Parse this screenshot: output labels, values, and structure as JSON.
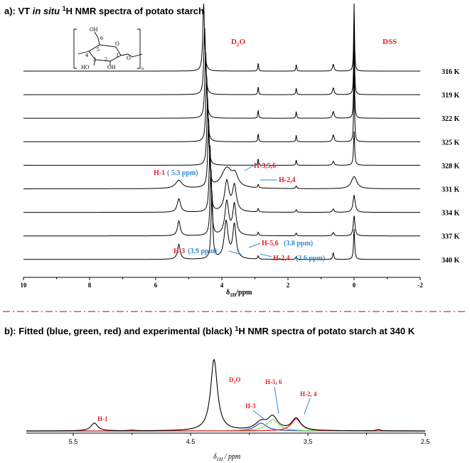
{
  "panel_a": {
    "title_prefix": "a): VT ",
    "title_italic": "in situ",
    "title_sup": "1",
    "title_suffix": "H NMR spectra of potato starch",
    "structure": {
      "oh_top": "OH",
      "num_6": "6",
      "num_5": "5",
      "num_4": "4",
      "num_1": "1",
      "num_3": "3",
      "num_2": "2",
      "ho_left": "HO",
      "oh_bottom": "OH",
      "o_ring": "O",
      "o_link": "O",
      "n_sub": "n"
    },
    "labels": {
      "d2o_main": "D",
      "d2o_sub": "2",
      "d2o_end": "O",
      "dss": "DSS",
      "h1": "H-1",
      "h1_ppm": "( 5.3 ppm)",
      "h356": "H-3,5,6",
      "h24": "H-2,4",
      "h56": "H-5,6",
      "h56_ppm": "(3.8 ppm)",
      "h3": "H-3",
      "h3_ppm": "(3.9 ppm)",
      "h24b": "H-2,4",
      "h24b_ppm": "(3.6 ppm)"
    },
    "xlabel_main": "δ",
    "xlabel_sub": "1H",
    "xlabel_end": "/ppm"
  },
  "panel_b": {
    "title_prefix": "b): Fitted (blue, green, red) and experimental (black) ",
    "title_sup": "1",
    "title_suffix": "H NMR spectra of potato starch at 340 K",
    "labels": {
      "h1": "H-1",
      "d2o": "D",
      "d2o_sub": "2",
      "d2o_end": "O",
      "h3": "H-3",
      "h56": "H-5, 6",
      "h24": "H-2, 4"
    },
    "xlabel_main": "δ",
    "xlabel_sub": "1H",
    "xlabel_end": " / ppm"
  },
  "chart_data": [
    {
      "type": "line",
      "title": "a): VT in situ 1H NMR spectra of potato starch",
      "xlabel": "δ1H/ppm",
      "ylabel": "",
      "x_reversed": true,
      "xlim": [
        10,
        -2
      ],
      "xticks": [
        "10",
        "8",
        "6",
        "4",
        "2",
        "0",
        "-2"
      ],
      "series": [
        {
          "name": "316 K",
          "peaks": [
            [
              4.55,
              1.0,
              0.03
            ],
            [
              2.9,
              0.12,
              0.015
            ],
            [
              1.75,
              0.1,
              0.015
            ],
            [
              0.63,
              0.1,
              0.03
            ],
            [
              0.0,
              1.0,
              0.015
            ]
          ]
        },
        {
          "name": "319 K",
          "peaks": [
            [
              4.52,
              1.0,
              0.03
            ],
            [
              2.9,
              0.12,
              0.015
            ],
            [
              1.75,
              0.1,
              0.015
            ],
            [
              0.63,
              0.1,
              0.03
            ],
            [
              0.0,
              1.0,
              0.015
            ]
          ]
        },
        {
          "name": "322 K",
          "peaks": [
            [
              4.49,
              1.0,
              0.03
            ],
            [
              2.9,
              0.12,
              0.015
            ],
            [
              1.75,
              0.1,
              0.015
            ],
            [
              0.63,
              0.1,
              0.03
            ],
            [
              0.0,
              1.0,
              0.015
            ]
          ]
        },
        {
          "name": "325 K",
          "peaks": [
            [
              4.46,
              1.0,
              0.03
            ],
            [
              2.9,
              0.12,
              0.015
            ],
            [
              1.75,
              0.1,
              0.015
            ],
            [
              0.63,
              0.1,
              0.03
            ],
            [
              0.0,
              1.0,
              0.015
            ]
          ]
        },
        {
          "name": "328 K",
          "peaks": [
            [
              4.43,
              1.0,
              0.03
            ],
            [
              2.9,
              0.1,
              0.015
            ],
            [
              1.75,
              0.08,
              0.015
            ],
            [
              0.63,
              0.06,
              0.03
            ],
            [
              0.0,
              0.5,
              0.02
            ]
          ]
        },
        {
          "name": "331 K",
          "peaks": [
            [
              4.4,
              1.0,
              0.03
            ],
            [
              5.3,
              0.12,
              0.12
            ],
            [
              3.85,
              0.3,
              0.2
            ],
            [
              3.6,
              0.15,
              0.1
            ],
            [
              2.9,
              0.05,
              0.02
            ],
            [
              1.75,
              0.04,
              0.02
            ],
            [
              0.0,
              0.18,
              0.1
            ]
          ]
        },
        {
          "name": "334 K",
          "peaks": [
            [
              4.36,
              1.0,
              0.03
            ],
            [
              5.3,
              0.2,
              0.06
            ],
            [
              3.85,
              0.45,
              0.08
            ],
            [
              3.62,
              0.38,
              0.07
            ],
            [
              2.9,
              0.05,
              0.02
            ],
            [
              1.75,
              0.04,
              0.02
            ],
            [
              0.63,
              0.05,
              0.03
            ],
            [
              0.0,
              0.25,
              0.04
            ]
          ]
        },
        {
          "name": "337 K",
          "peaks": [
            [
              4.33,
              1.0,
              0.03
            ],
            [
              5.3,
              0.22,
              0.05
            ],
            [
              3.85,
              0.5,
              0.07
            ],
            [
              3.62,
              0.45,
              0.06
            ],
            [
              2.9,
              0.05,
              0.02
            ],
            [
              1.75,
              0.04,
              0.02
            ],
            [
              0.63,
              0.05,
              0.03
            ],
            [
              0.0,
              0.3,
              0.03
            ]
          ]
        },
        {
          "name": "340 K",
          "peaks": [
            [
              4.3,
              1.0,
              0.03
            ],
            [
              5.3,
              0.22,
              0.05
            ],
            [
              3.87,
              0.55,
              0.07
            ],
            [
              3.62,
              0.5,
              0.06
            ],
            [
              2.9,
              0.05,
              0.02
            ],
            [
              1.75,
              0.04,
              0.02
            ],
            [
              0.63,
              0.1,
              0.02
            ],
            [
              0.0,
              0.45,
              0.02
            ]
          ]
        }
      ]
    },
    {
      "type": "line",
      "title": "b): Fitted (blue, green, red) and experimental (black) 1H NMR spectra of potato starch at 340 K",
      "xlabel": "δ1H / ppm",
      "ylabel": "",
      "x_reversed": true,
      "xlim": [
        5.9,
        2.5
      ],
      "xticks": [
        "5.5",
        "4.5",
        "3.5",
        "2.5"
      ],
      "colors": {
        "experimental": "#000000",
        "blue": "#3f51c8",
        "green": "#7ddc6a",
        "red": "#e8202a"
      },
      "series": [
        {
          "name": "experimental",
          "peaks": [
            [
              5.32,
              0.11,
              0.035
            ],
            [
              4.3,
              1.0,
              0.035
            ],
            [
              3.9,
              0.11,
              0.06
            ],
            [
              3.8,
              0.18,
              0.05
            ],
            [
              3.6,
              0.17,
              0.045
            ],
            [
              2.9,
              0.02,
              0.02
            ],
            [
              5.0,
              0.008,
              0.03
            ]
          ]
        },
        {
          "name": "blue",
          "peaks": [
            [
              3.9,
              0.11,
              0.06
            ]
          ]
        },
        {
          "name": "green",
          "peaks": [
            [
              3.8,
              0.16,
              0.06
            ]
          ]
        },
        {
          "name": "red",
          "peaks": [
            [
              3.6,
              0.17,
              0.05
            ]
          ]
        }
      ]
    }
  ]
}
